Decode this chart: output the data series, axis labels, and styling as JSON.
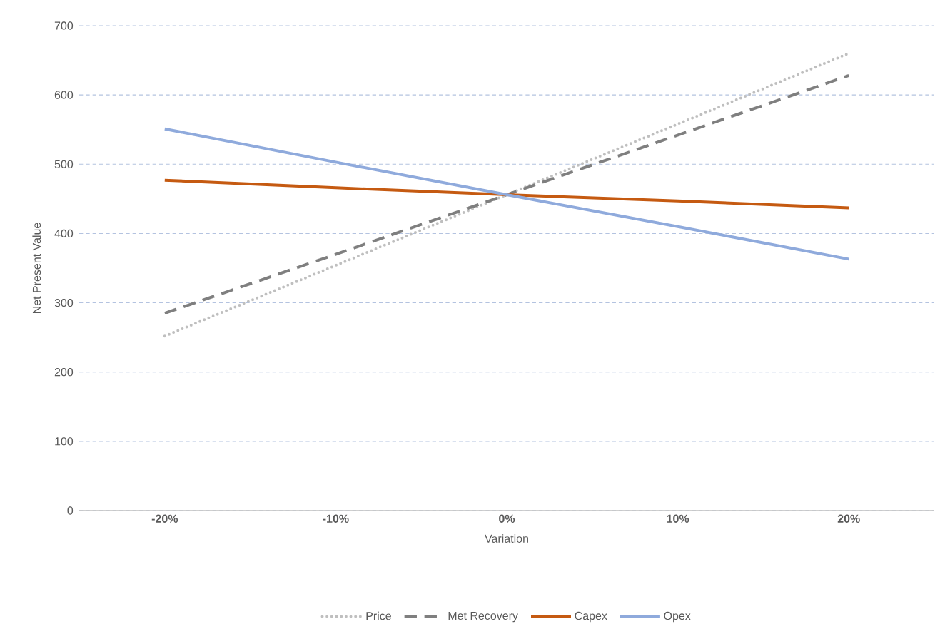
{
  "chart_data": {
    "type": "line",
    "xlabel": "Variation",
    "ylabel": "Net Present Value",
    "categories": [
      "-20%",
      "-10%",
      "0%",
      "10%",
      "20%"
    ],
    "series": [
      {
        "name": "Price",
        "color": "#bfbfbf",
        "line_style": "dotted",
        "values": [
          252,
          354,
          456,
          558,
          660
        ]
      },
      {
        "name": "Met Recovery",
        "color": "#7f7f7f",
        "line_style": "dashed",
        "values": [
          285,
          370,
          456,
          542,
          628
        ]
      },
      {
        "name": "Capex",
        "color": "#c55a11",
        "line_style": "solid",
        "values": [
          477,
          466,
          456,
          447,
          437
        ]
      },
      {
        "name": "Opex",
        "color": "#8faadc",
        "line_style": "solid",
        "values": [
          551,
          503,
          456,
          410,
          363
        ]
      }
    ],
    "ylim": [
      0,
      700
    ],
    "yticks": [
      0,
      100,
      200,
      300,
      400,
      500,
      600,
      700
    ],
    "grid": "y",
    "legend": "bottom"
  }
}
